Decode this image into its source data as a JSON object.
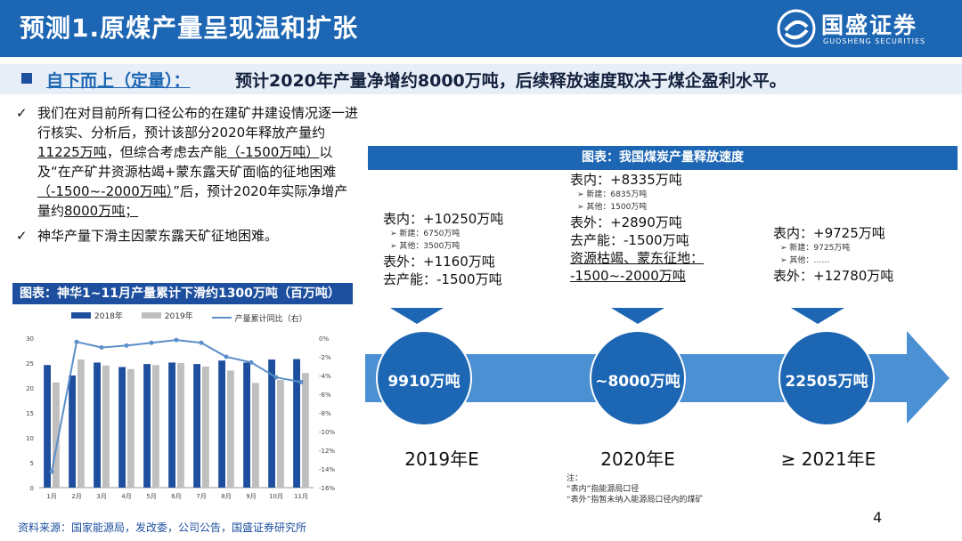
{
  "header": {
    "title": "预测1.原煤产量呈现温和扩张",
    "logo_name": "国盛证券",
    "logo_en": "GUOSHENG SECURITIES",
    "background_color": "#1d66b3"
  },
  "subheader": {
    "label": "自下而上（定量）：",
    "text": "预计2020年产量净增约8000万吨，后续释放速度取决于煤企盈利水平。"
  },
  "left_notes": {
    "check_mark": "✓",
    "note1": {
      "t1": "我们在对目前所有口径公布的在建矿井建设情况逐一进行核实、分析后，预计该部分2020年释放产量约",
      "u1": "11225万吨",
      "t2": "，但综合考虑去产能",
      "u2": "（-1500万吨）",
      "t3": "以及“在产矿井资源枯竭+蒙东露天矿面临的征地困难",
      "u3": "（-1500~-2000万吨）",
      "t4": "”后，预计2020年实际净增产量约",
      "u4": "8000万吨；"
    },
    "note2": "神华产量下滑主因蒙东露天矿征地困难。"
  },
  "inner_chart": {
    "title": "图表：神华1~11月产量累计下滑约1300万吨（百万吨）",
    "legend": [
      "2018年",
      "2019年",
      "产量累计同比（右）"
    ]
  },
  "chart_data": {
    "type": "bar",
    "categories": [
      "1月",
      "2月",
      "3月",
      "4月",
      "5月",
      "6月",
      "7月",
      "8月",
      "9月",
      "10月",
      "11月"
    ],
    "series": [
      {
        "name": "2018年",
        "type": "bar",
        "axis": "left",
        "color": "#1d4f9e",
        "values": [
          24.6,
          22.5,
          25.1,
          24.2,
          24.8,
          25.1,
          24.8,
          25.5,
          25.1,
          25.7,
          25.8
        ]
      },
      {
        "name": "2019年",
        "type": "bar",
        "axis": "left",
        "color": "#bfbfbf",
        "values": [
          21.1,
          25.7,
          24.5,
          23.8,
          24.6,
          25.0,
          24.3,
          23.5,
          21.0,
          21.6,
          23.0
        ]
      },
      {
        "name": "产量累计同比（右）",
        "type": "line",
        "axis": "right",
        "color": "#5b8fc9",
        "values": [
          -14.3,
          -0.4,
          -1.0,
          -0.8,
          -0.5,
          -0.2,
          -0.5,
          -2.0,
          -2.6,
          -4.2,
          -4.7
        ]
      }
    ],
    "y_left": {
      "min": 0,
      "max": 30,
      "ticks": [
        0,
        5,
        10,
        15,
        20,
        25,
        30
      ]
    },
    "y_right": {
      "min": -16,
      "max": 0,
      "ticks": [
        0,
        -2,
        -4,
        -6,
        -8,
        -10,
        -12,
        -14,
        -16
      ],
      "unit": "%"
    },
    "legend_position": "top"
  },
  "main_chart": {
    "title": "图表：我国煤炭产量释放速度",
    "arrow_color": "#4a90d2",
    "circle_color": "#1d66b3",
    "stages": [
      {
        "year": "2019年E",
        "value": "9910万吨",
        "lines": [
          {
            "style": "big",
            "text": "表内：+10250万吨"
          },
          {
            "style": "small",
            "text": "➢ 新建：6750万吨"
          },
          {
            "style": "small",
            "text": "➢ 其他：3500万吨"
          },
          {
            "style": "big",
            "text": "表外：+1160万吨"
          },
          {
            "style": "big",
            "text": "去产能：-1500万吨"
          }
        ]
      },
      {
        "year": "2020年E",
        "value": "~8000万吨",
        "lines": [
          {
            "style": "big",
            "text": "表内：+8335万吨"
          },
          {
            "style": "small",
            "text": "➢ 新建：6835万吨"
          },
          {
            "style": "small",
            "text": "➢ 其他：1500万吨"
          },
          {
            "style": "big",
            "text": "表外：+2890万吨"
          },
          {
            "style": "big",
            "text": "去产能：-1500万吨"
          },
          {
            "style": "big-u",
            "text": "资源枯竭、蒙东征地："
          },
          {
            "style": "big-u",
            "text": "-1500~-2000万吨"
          }
        ]
      },
      {
        "year": "≥ 2021年E",
        "value": "22505万吨",
        "lines": [
          {
            "style": "big",
            "text": "表内：+9725万吨"
          },
          {
            "style": "small",
            "text": "➢ 新建：9725万吨"
          },
          {
            "style": "small",
            "text": "➢ 其他：……"
          },
          {
            "style": "big",
            "text": "表外：+12780万吨"
          }
        ]
      }
    ]
  },
  "notes": {
    "label": "注：",
    "line1": "“表内”指能源局口径",
    "line2": "“表外”指暂未纳入能源局口径内的煤矿"
  },
  "source": "资料来源：国家能源局，发改委，公司公告，国盛证券研究所",
  "page_number": "4"
}
